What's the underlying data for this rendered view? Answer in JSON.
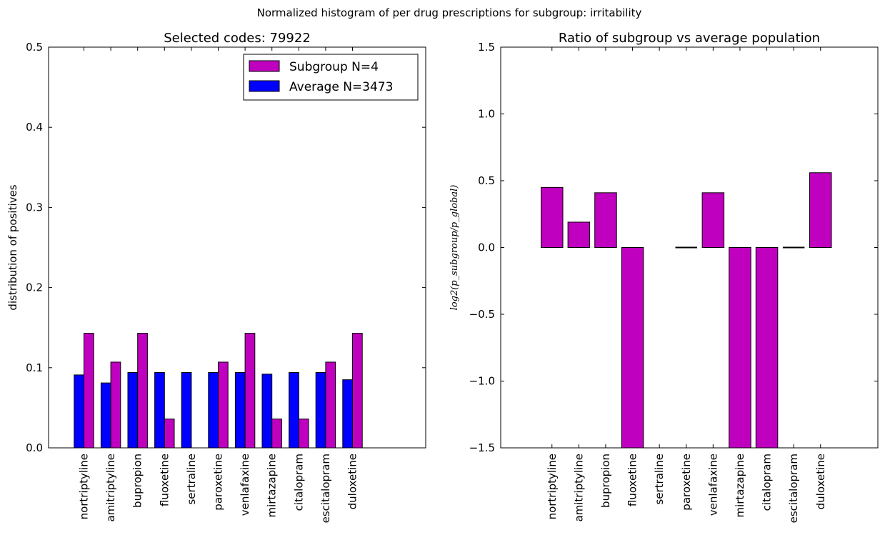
{
  "suptitle": "Normalized histogram of per drug prescriptions for subgroup: irritability",
  "chart_data": [
    {
      "type": "bar",
      "title": "Selected codes: 79922",
      "xlabel": "",
      "ylabel": "distribution of positives",
      "ylim": [
        0,
        0.5
      ],
      "yticks": [
        "0.0",
        "0.1",
        "0.2",
        "0.3",
        "0.4",
        "0.5"
      ],
      "legend_position": "top-right",
      "grid": false,
      "categories": [
        "nortriptyline",
        "amitriptyline",
        "bupropion",
        "fluoxetine",
        "sertraline",
        "paroxetine",
        "venlafaxine",
        "mirtazapine",
        "citalopram",
        "escitalopram",
        "duloxetine"
      ],
      "series": [
        {
          "name": "Subgroup N=4",
          "color": "#bf00bf",
          "values": [
            0.143,
            0.107,
            0.143,
            0.036,
            0.0,
            0.107,
            0.143,
            0.036,
            0.036,
            0.107,
            0.143
          ]
        },
        {
          "name": "Average N=3473",
          "color": "#0000ff",
          "values": [
            0.091,
            0.081,
            0.094,
            0.094,
            0.094,
            0.094,
            0.094,
            0.092,
            0.094,
            0.094,
            0.085
          ]
        }
      ]
    },
    {
      "type": "bar",
      "title": "Ratio of subgroup vs average population",
      "xlabel": "",
      "ylabel": "log2(p_subgroup/p_global)",
      "ylim": [
        -1.5,
        1.5
      ],
      "yticks": [
        "−1.5",
        "−1.0",
        "−0.5",
        "0.0",
        "0.5",
        "1.0",
        "1.5"
      ],
      "grid": false,
      "categories": [
        "nortriptyline",
        "amitriptyline",
        "bupropion",
        "fluoxetine",
        "sertraline",
        "paroxetine",
        "venlafaxine",
        "mirtazapine",
        "citalopram",
        "escitalopram",
        "duloxetine"
      ],
      "series": [
        {
          "color": "#bf00bf",
          "values": [
            0.45,
            0.19,
            0.41,
            -1.5,
            0.0,
            0.0,
            0.41,
            -1.5,
            -1.5,
            0.0,
            0.56
          ]
        }
      ]
    }
  ]
}
